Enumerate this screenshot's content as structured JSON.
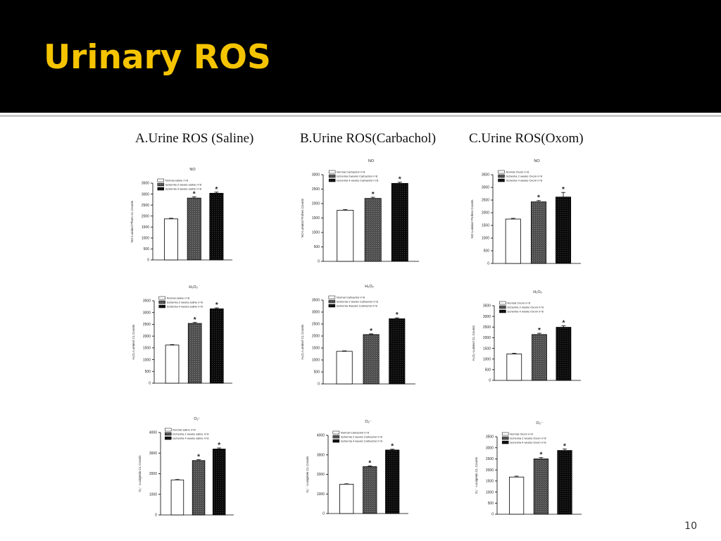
{
  "slide": {
    "title": "Urinary ROS",
    "page_number": "10",
    "panel_headings": [
      "A.Urine ROS (Saline)",
      "B.Urine ROS(Carbachol)",
      "C.Urine ROS(Oxom)"
    ],
    "colors": {
      "header_bg": "#000000",
      "title": "#f5c400",
      "bar_outline": "#000000"
    }
  },
  "chart_data": [
    {
      "type": "bar",
      "panel": "A",
      "title": "NO",
      "ylabel": "NO-Luminol Photo CL Counts",
      "ylim": [
        0,
        3500
      ],
      "yticks": [
        0,
        500,
        1000,
        1500,
        2000,
        2500,
        3000,
        3500
      ],
      "series": [
        {
          "name": "Normal  saline n=8",
          "value": 1870,
          "error": 30,
          "significant": false,
          "fill": "white"
        },
        {
          "name": "Ischemia 2 weeks saline n=8",
          "value": 2820,
          "error": 60,
          "significant": true,
          "fill": "gray"
        },
        {
          "name": "Ischemia 4 weeks saline n=8",
          "value": 3040,
          "error": 50,
          "significant": true,
          "fill": "black"
        }
      ]
    },
    {
      "type": "bar",
      "panel": "B",
      "title": "NO",
      "ylabel": "NO-Luminol Probes Counts",
      "ylim": [
        0,
        3000
      ],
      "yticks": [
        0,
        500,
        1000,
        1500,
        2000,
        2500,
        3000
      ],
      "series": [
        {
          "name": "Normal Carbachol n=8",
          "value": 1770,
          "error": 20,
          "significant": false,
          "fill": "white"
        },
        {
          "name": "Ischemia 2weeks Carbachol n=8",
          "value": 2180,
          "error": 40,
          "significant": true,
          "fill": "gray"
        },
        {
          "name": "Ischemia 4 weeks Carbachol n=8",
          "value": 2700,
          "error": 40,
          "significant": true,
          "fill": "black"
        }
      ]
    },
    {
      "type": "bar",
      "panel": "C",
      "title": "NO",
      "ylabel": "NO-Luminol Probes Counts",
      "ylim": [
        0,
        3500
      ],
      "yticks": [
        0,
        500,
        1000,
        1500,
        2000,
        2500,
        3000,
        3500
      ],
      "series": [
        {
          "name": "Normal Oxom n=8",
          "value": 1750,
          "error": 30,
          "significant": false,
          "fill": "white"
        },
        {
          "name": "Ischemia 2 weeks Oxom n=8",
          "value": 2430,
          "error": 50,
          "significant": true,
          "fill": "gray"
        },
        {
          "name": "Ischemia 4 weeks Oxom n=8",
          "value": 2620,
          "error": 180,
          "significant": true,
          "fill": "black"
        }
      ]
    },
    {
      "type": "bar",
      "panel": "A",
      "title": "H2O2",
      "ylabel": "H2O2-Luminol CL Counts",
      "ylim": [
        0,
        3500
      ],
      "yticks": [
        0,
        500,
        1000,
        1500,
        2000,
        2500,
        3000,
        3500
      ],
      "series": [
        {
          "name": "Normal saline n=8",
          "value": 1620,
          "error": 20,
          "significant": false,
          "fill": "white"
        },
        {
          "name": "Ischemia 2 weeks saline n=8",
          "value": 2540,
          "error": 40,
          "significant": true,
          "fill": "gray"
        },
        {
          "name": "Ischemia 4 weeks saline n=8",
          "value": 3160,
          "error": 40,
          "significant": true,
          "fill": "black"
        }
      ]
    },
    {
      "type": "bar",
      "panel": "B",
      "title": "H2O2",
      "ylabel": "H2O2-Luminol CL Counts",
      "ylim": [
        0,
        3500
      ],
      "yticks": [
        0,
        500,
        1000,
        1500,
        2000,
        2500,
        3000,
        3500
      ],
      "series": [
        {
          "name": "Normal Carbachol n=8",
          "value": 1360,
          "error": 20,
          "significant": false,
          "fill": "white"
        },
        {
          "name": "Ischemia 2 weeks Carbachol n=8",
          "value": 2060,
          "error": 30,
          "significant": true,
          "fill": "gray"
        },
        {
          "name": "Ischemia 4weeks Carbachol n=8",
          "value": 2720,
          "error": 40,
          "significant": true,
          "fill": "black"
        }
      ]
    },
    {
      "type": "bar",
      "panel": "C",
      "title": "H2O2",
      "ylabel": "H2O2-Luminol CL Counts",
      "ylim": [
        0,
        3500
      ],
      "yticks": [
        0,
        500,
        1000,
        1500,
        2000,
        2500,
        3000,
        3500
      ],
      "series": [
        {
          "name": "Normal Oxom n=8",
          "value": 1240,
          "error": 30,
          "significant": false,
          "fill": "white"
        },
        {
          "name": "Ischemia 2 weeks Oxom n=8",
          "value": 2150,
          "error": 60,
          "significant": true,
          "fill": "gray"
        },
        {
          "name": "Ischemia 4 weeks Oxom n=8",
          "value": 2490,
          "error": 70,
          "significant": true,
          "fill": "black"
        }
      ]
    },
    {
      "type": "bar",
      "panel": "A",
      "title": "O2-",
      "ylabel": "O2- -Lucigenin CL Counts",
      "ylim": [
        0,
        4000
      ],
      "yticks": [
        0,
        1000,
        2000,
        3000,
        4000
      ],
      "series": [
        {
          "name": "Normal saline n=8",
          "value": 1700,
          "error": 20,
          "significant": false,
          "fill": "white"
        },
        {
          "name": "Ischemia 2 weeks saline n=8",
          "value": 2640,
          "error": 40,
          "significant": true,
          "fill": "gray"
        },
        {
          "name": "Ischemia 4 weeks saline n=8",
          "value": 3200,
          "error": 50,
          "significant": true,
          "fill": "black"
        }
      ]
    },
    {
      "type": "bar",
      "panel": "B",
      "title": "O2-",
      "ylabel": "O2- -Lucigenin CL Counts",
      "ylim": [
        0,
        4000
      ],
      "yticks": [
        0,
        1000,
        2000,
        3000,
        4000
      ],
      "series": [
        {
          "name": "Normal Carbachol n=8",
          "value": 1500,
          "error": 20,
          "significant": false,
          "fill": "white"
        },
        {
          "name": "Ischemia 2 weeks Carbachol n=8",
          "value": 2400,
          "error": 40,
          "significant": true,
          "fill": "gray"
        },
        {
          "name": "Ischemia 4 weeks Carbachol n=8",
          "value": 3250,
          "error": 40,
          "significant": true,
          "fill": "black"
        }
      ]
    },
    {
      "type": "bar",
      "panel": "C",
      "title": "O2-",
      "ylabel": "O2- -Lucigenin CL Counts",
      "ylim": [
        0,
        3500
      ],
      "yticks": [
        0,
        500,
        1000,
        1500,
        2000,
        2500,
        3000,
        3500
      ],
      "series": [
        {
          "name": "Normal Oxom n=8",
          "value": 1680,
          "error": 40,
          "significant": false,
          "fill": "white"
        },
        {
          "name": "Ischemia 2 weeks Oxom n=8",
          "value": 2500,
          "error": 60,
          "significant": true,
          "fill": "gray"
        },
        {
          "name": "Ischemia 4 weeks Oxom n=8",
          "value": 2880,
          "error": 70,
          "significant": true,
          "fill": "black"
        }
      ]
    }
  ]
}
